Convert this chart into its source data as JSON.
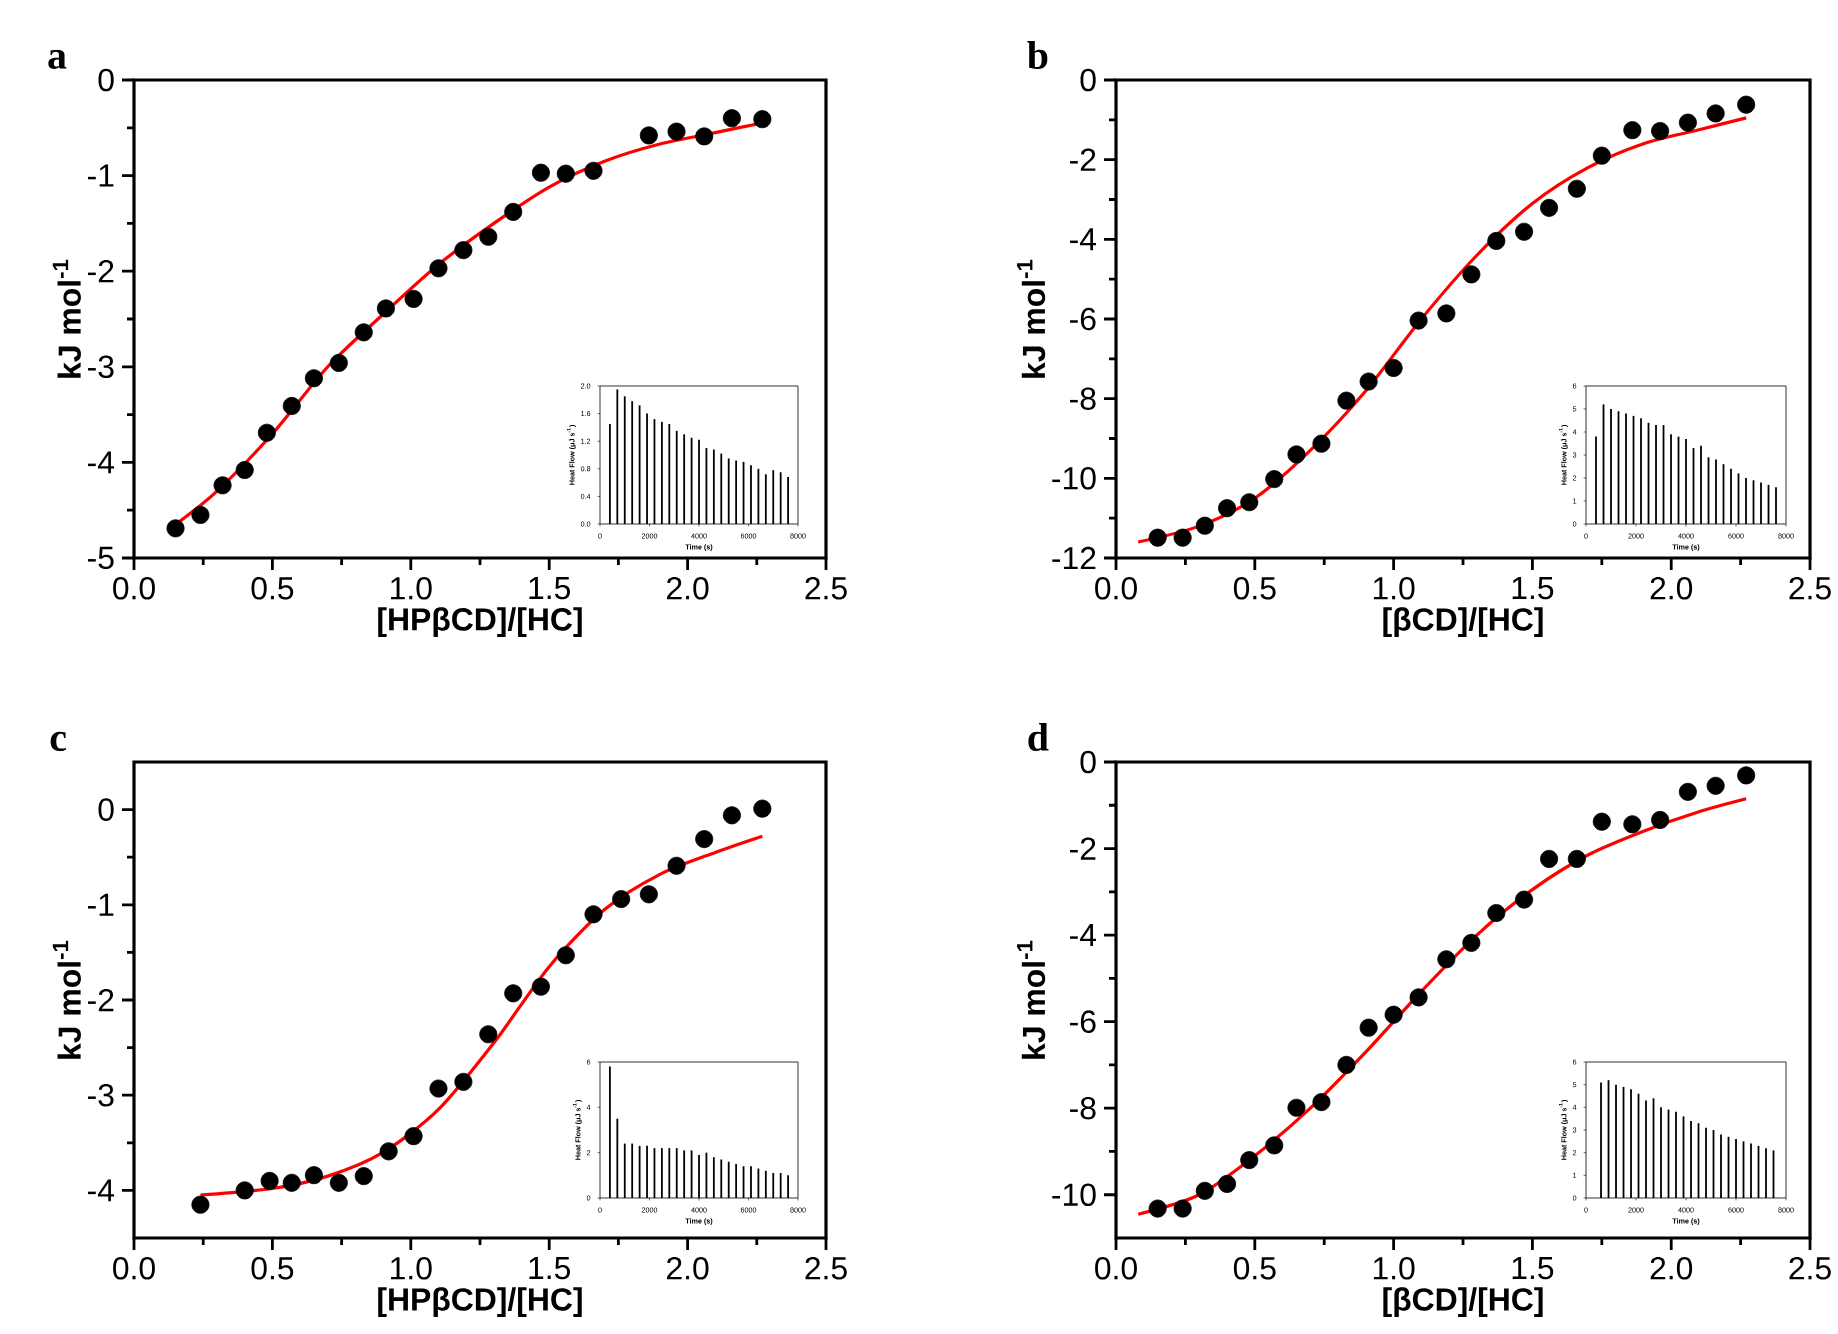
{
  "chart_data": [
    {
      "type": "scatter",
      "title": "a",
      "xlabel": "[HPβCD]/[HC]",
      "ylabel": "kJ mol$^{-1}$",
      "xlim": [
        0,
        2.5
      ],
      "ylim": [
        -5,
        0
      ],
      "xticks": [
        {
          "value": 0,
          "label": "0.0"
        },
        {
          "value": 0.5,
          "label": "0.5"
        },
        {
          "value": 1,
          "label": "1.0"
        },
        {
          "value": 1.5,
          "label": "1.5"
        },
        {
          "value": 2,
          "label": "2.0"
        },
        {
          "value": 2.5,
          "label": "2.5"
        }
      ],
      "yticks": [
        0,
        -1,
        -2,
        -3,
        -4,
        -5
      ],
      "series": [
        {
          "type": "scatter",
          "marker": "circle",
          "color": "#000000",
          "x": [
            0.15,
            0.24,
            0.32,
            0.4,
            0.48,
            0.57,
            0.65,
            0.74,
            0.83,
            0.91,
            1.01,
            1.1,
            1.19,
            1.28,
            1.37,
            1.47,
            1.56,
            1.66,
            1.86,
            1.96,
            2.06,
            2.16,
            2.27
          ],
          "values": [
            -4.69,
            -4.55,
            -4.24,
            -4.08,
            -3.69,
            -3.41,
            -3.12,
            -2.96,
            -2.64,
            -2.39,
            -2.29,
            -1.97,
            -1.78,
            -1.64,
            -1.38,
            -0.97,
            -0.98,
            -0.95,
            -0.58,
            -0.54,
            -0.59,
            -0.4,
            -0.41
          ]
        },
        {
          "type": "line",
          "color": "#ff0000",
          "x": [
            0.15,
            0.3,
            0.5,
            0.7,
            0.9,
            1.1,
            1.3,
            1.5,
            1.7,
            1.9,
            2.1,
            2.27
          ],
          "values": [
            -4.65,
            -4.3,
            -3.7,
            -3.0,
            -2.45,
            -1.93,
            -1.5,
            -1.12,
            -0.85,
            -0.67,
            -0.55,
            -0.45
          ]
        }
      ]
    },
    {
      "type": "bar",
      "xlabel": "Time (s)",
      "ylabel": "Heat Flow (μJ s$^{-1}$)",
      "color": "#000000",
      "xlim": [
        0,
        8000
      ],
      "ylim": [
        0,
        2.0
      ],
      "xticks": [
        0,
        2000,
        4000,
        6000,
        8000
      ],
      "yticks": [
        {
          "value": 0,
          "label": "0.0"
        },
        {
          "value": 0.4,
          "label": "0.4"
        },
        {
          "value": 0.8,
          "label": "0.8"
        },
        {
          "value": 1.2,
          "label": "1.2"
        },
        {
          "value": 1.6,
          "label": "1.6"
        },
        {
          "value": 2.0,
          "label": "2.0"
        }
      ],
      "x": [
        400,
        700,
        1000,
        1300,
        1600,
        1900,
        2200,
        2500,
        2800,
        3100,
        3400,
        3700,
        4000,
        4300,
        4600,
        4900,
        5200,
        5500,
        5800,
        6100,
        6400,
        6700,
        7000,
        7300,
        7600
      ],
      "values": [
        1.45,
        1.95,
        1.85,
        1.78,
        1.72,
        1.6,
        1.52,
        1.48,
        1.45,
        1.35,
        1.3,
        1.25,
        1.22,
        1.1,
        1.08,
        1.02,
        0.95,
        0.92,
        0.9,
        0.85,
        0.8,
        0.72,
        0.78,
        0.75,
        0.68
      ]
    },
    {
      "type": "scatter",
      "title": "b",
      "xlabel": "[βCD]/[HC]",
      "ylabel": "kJ mol$^{-1}$",
      "xlim": [
        0,
        2.5
      ],
      "ylim": [
        -12,
        0
      ],
      "xticks": [
        {
          "value": 0,
          "label": "0.0"
        },
        {
          "value": 0.5,
          "label": "0.5"
        },
        {
          "value": 1,
          "label": "1.0"
        },
        {
          "value": 1.5,
          "label": "1.5"
        },
        {
          "value": 2,
          "label": "2.0"
        },
        {
          "value": 2.5,
          "label": "2.5"
        }
      ],
      "yticks": [
        0,
        -2,
        -4,
        -6,
        -8,
        -10,
        -12
      ],
      "series": [
        {
          "type": "scatter",
          "marker": "circle",
          "color": "#000000",
          "x": [
            0.15,
            0.24,
            0.32,
            0.4,
            0.48,
            0.57,
            0.65,
            0.74,
            0.83,
            0.91,
            1.0,
            1.09,
            1.19,
            1.28,
            1.37,
            1.47,
            1.56,
            1.66,
            1.75,
            1.86,
            1.96,
            2.06,
            2.16,
            2.27
          ],
          "values": [
            -11.49,
            -11.49,
            -11.19,
            -10.75,
            -10.6,
            -10.02,
            -9.4,
            -9.13,
            -8.05,
            -7.57,
            -7.23,
            -6.04,
            -5.86,
            -4.88,
            -4.04,
            -3.81,
            -3.21,
            -2.73,
            -1.9,
            -1.26,
            -1.28,
            -1.07,
            -0.84,
            -0.62
          ]
        },
        {
          "type": "line",
          "color": "#ff0000",
          "x": [
            0.08,
            0.3,
            0.5,
            0.7,
            0.9,
            1.1,
            1.3,
            1.5,
            1.7,
            1.9,
            2.1,
            2.27
          ],
          "values": [
            -11.6,
            -11.2,
            -10.5,
            -9.3,
            -7.8,
            -6.0,
            -4.4,
            -3.1,
            -2.2,
            -1.6,
            -1.25,
            -0.95
          ]
        }
      ]
    },
    {
      "type": "bar",
      "xlabel": "Time (s)",
      "ylabel": "Heat Flow (μJ s$^{-1}$)",
      "color": "#000000",
      "xlim": [
        0,
        8000
      ],
      "ylim": [
        0,
        6
      ],
      "xticks": [
        0,
        2000,
        4000,
        6000,
        8000
      ],
      "yticks": [
        0,
        1,
        2,
        3,
        4,
        5,
        6
      ],
      "x": [
        400,
        700,
        1000,
        1300,
        1600,
        1900,
        2200,
        2500,
        2800,
        3100,
        3400,
        3700,
        4000,
        4300,
        4600,
        4900,
        5200,
        5500,
        5800,
        6100,
        6400,
        6700,
        7000,
        7300,
        7600
      ],
      "values": [
        3.8,
        5.2,
        5.0,
        4.9,
        4.8,
        4.7,
        4.6,
        4.4,
        4.3,
        4.3,
        3.9,
        3.8,
        3.7,
        3.3,
        3.4,
        2.9,
        2.8,
        2.6,
        2.4,
        2.2,
        2.0,
        1.9,
        1.8,
        1.7,
        1.6
      ]
    },
    {
      "type": "scatter",
      "title": "c",
      "xlabel": "[HPβCD]/[HC]",
      "ylabel": "kJ mol$^{-1}$",
      "xlim": [
        0,
        2.5
      ],
      "ylim": [
        -4.5,
        0.5
      ],
      "xticks": [
        {
          "value": 0,
          "label": "0.0"
        },
        {
          "value": 0.5,
          "label": "0.5"
        },
        {
          "value": 1,
          "label": "1.0"
        },
        {
          "value": 1.5,
          "label": "1.5"
        },
        {
          "value": 2,
          "label": "2.0"
        },
        {
          "value": 2.5,
          "label": "2.5"
        }
      ],
      "yticks": [
        0,
        -1,
        -2,
        -3,
        -4
      ],
      "series": [
        {
          "type": "scatter",
          "marker": "circle",
          "color": "#000000",
          "x": [
            0.24,
            0.4,
            0.49,
            0.57,
            0.65,
            0.74,
            0.83,
            0.92,
            1.01,
            1.1,
            1.19,
            1.28,
            1.37,
            1.47,
            1.56,
            1.66,
            1.76,
            1.86,
            1.96,
            2.06,
            2.16,
            2.27
          ],
          "values": [
            -4.15,
            -4.0,
            -3.9,
            -3.92,
            -3.84,
            -3.92,
            -3.85,
            -3.59,
            -3.43,
            -2.93,
            -2.86,
            -2.36,
            -1.93,
            -1.86,
            -1.53,
            -1.1,
            -0.94,
            -0.89,
            -0.59,
            -0.31,
            -0.06,
            0.01
          ]
        },
        {
          "type": "line",
          "color": "#ff0000",
          "x": [
            0.24,
            0.5,
            0.7,
            0.9,
            1.1,
            1.3,
            1.5,
            1.7,
            1.9,
            2.1,
            2.27
          ],
          "values": [
            -4.05,
            -3.98,
            -3.85,
            -3.6,
            -3.15,
            -2.45,
            -1.65,
            -1.05,
            -0.68,
            -0.45,
            -0.28
          ]
        }
      ]
    },
    {
      "type": "bar",
      "xlabel": "Time (s)",
      "ylabel": "Heat Flow (μJ s$^{-1}$)",
      "color": "#000000",
      "xlim": [
        0,
        8000
      ],
      "ylim": [
        0,
        6
      ],
      "xticks": [
        0,
        2000,
        4000,
        6000,
        8000
      ],
      "yticks": [
        0,
        2,
        4,
        6
      ],
      "x": [
        400,
        700,
        1000,
        1300,
        1600,
        1900,
        2200,
        2500,
        2800,
        3100,
        3400,
        3700,
        4000,
        4300,
        4600,
        4900,
        5200,
        5500,
        5800,
        6100,
        6400,
        6700,
        7000,
        7300,
        7600
      ],
      "values": [
        5.8,
        3.5,
        2.4,
        2.4,
        2.3,
        2.3,
        2.2,
        2.2,
        2.2,
        2.2,
        2.1,
        2.1,
        1.9,
        2.0,
        1.8,
        1.7,
        1.6,
        1.5,
        1.4,
        1.4,
        1.3,
        1.2,
        1.1,
        1.1,
        1.0
      ]
    },
    {
      "type": "scatter",
      "title": "d",
      "xlabel": "[βCD]/[HC]",
      "ylabel": "kJ mol$^{-1}$",
      "xlim": [
        0,
        2.5
      ],
      "ylim": [
        -11,
        0
      ],
      "xticks": [
        {
          "value": 0,
          "label": "0.0"
        },
        {
          "value": 0.5,
          "label": "0.5"
        },
        {
          "value": 1,
          "label": "1.0"
        },
        {
          "value": 1.5,
          "label": "1.5"
        },
        {
          "value": 2,
          "label": "2.0"
        },
        {
          "value": 2.5,
          "label": "2.5"
        }
      ],
      "yticks": [
        0,
        -2,
        -4,
        -6,
        -8,
        -10
      ],
      "series": [
        {
          "type": "scatter",
          "marker": "circle",
          "color": "#000000",
          "x": [
            0.15,
            0.24,
            0.32,
            0.4,
            0.48,
            0.57,
            0.65,
            0.74,
            0.83,
            0.91,
            1.0,
            1.09,
            1.19,
            1.28,
            1.37,
            1.47,
            1.56,
            1.66,
            1.75,
            1.86,
            1.96,
            2.06,
            2.16,
            2.27
          ],
          "values": [
            -10.32,
            -10.32,
            -9.91,
            -9.75,
            -9.2,
            -8.86,
            -7.99,
            -7.86,
            -7.0,
            -6.14,
            -5.84,
            -5.44,
            -4.56,
            -4.18,
            -3.49,
            -3.18,
            -2.24,
            -2.24,
            -1.38,
            -1.44,
            -1.34,
            -0.69,
            -0.55,
            -0.31
          ]
        },
        {
          "type": "line",
          "color": "#ff0000",
          "x": [
            0.08,
            0.3,
            0.5,
            0.7,
            0.9,
            1.1,
            1.3,
            1.5,
            1.7,
            1.9,
            2.1,
            2.27
          ],
          "values": [
            -10.45,
            -10.0,
            -9.1,
            -8.0,
            -6.7,
            -5.3,
            -4.0,
            -2.95,
            -2.15,
            -1.6,
            -1.15,
            -0.85
          ]
        }
      ]
    },
    {
      "type": "bar",
      "xlabel": "Time (s)",
      "ylabel": "Heat Flow (μJ s$^{-1}$)",
      "color": "#000000",
      "xlim": [
        0,
        8000
      ],
      "ylim": [
        0,
        6
      ],
      "xticks": [
        0,
        2000,
        4000,
        6000,
        8000
      ],
      "yticks": [
        0,
        1,
        2,
        3,
        4,
        5,
        6
      ],
      "x": [
        600,
        900,
        1200,
        1500,
        1800,
        2100,
        2400,
        2700,
        3000,
        3300,
        3600,
        3900,
        4200,
        4500,
        4800,
        5100,
        5400,
        5700,
        6000,
        6300,
        6600,
        6900,
        7200,
        7500
      ],
      "values": [
        5.1,
        5.2,
        5.0,
        4.9,
        4.8,
        4.6,
        4.3,
        4.4,
        4.0,
        3.9,
        3.8,
        3.6,
        3.4,
        3.3,
        3.1,
        3.0,
        2.8,
        2.7,
        2.6,
        2.5,
        2.4,
        2.3,
        2.2,
        2.1
      ]
    }
  ]
}
